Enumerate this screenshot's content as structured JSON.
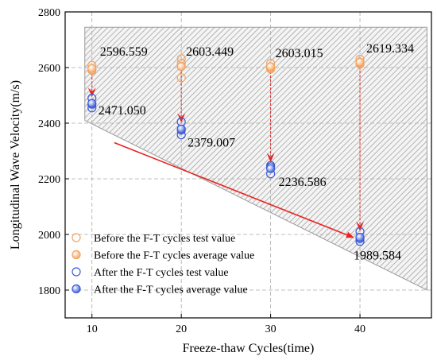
{
  "chart_data": {
    "type": "scatter",
    "xlabel": "Freeze-thaw Cycles(time)",
    "ylabel": "Longitudinal Wave Velocity(m/s)",
    "xlim": [
      7,
      48
    ],
    "ylim": [
      1700,
      2800
    ],
    "x_ticks": [
      "10",
      "20",
      "30",
      "40"
    ],
    "y_ticks": [
      "1800",
      "2000",
      "2200",
      "2400",
      "2600",
      "2800"
    ],
    "grid": true,
    "legend_position": "bottom-left",
    "colors": {
      "before": "#f4a460",
      "after": "#3b5bdb",
      "arrow": "#e8231f",
      "hatch": "#9a9a9a"
    },
    "series": [
      {
        "name": "Before the F-T cycles test value",
        "marker": "open-circle",
        "x": [
          10,
          10,
          10,
          20,
          20,
          20,
          20,
          30,
          30,
          30,
          40,
          40,
          40
        ],
        "y": [
          2608,
          2592,
          2590,
          2632,
          2615,
          2563,
          2604,
          2615,
          2595,
          2599,
          2630,
          2612,
          2616
        ]
      },
      {
        "name": "Before the F-T cycles average value",
        "marker": "filled-circle",
        "x": [
          10,
          20,
          30,
          40
        ],
        "y": [
          2596.559,
          2603.449,
          2603.015,
          2619.334
        ]
      },
      {
        "name": "After the F-T cycles test value",
        "marker": "open-circle",
        "x": [
          10,
          10,
          10,
          20,
          20,
          20,
          30,
          30,
          30,
          40,
          40,
          40
        ],
        "y": [
          2490,
          2455,
          2468,
          2405,
          2358,
          2375,
          2248,
          2218,
          2243,
          2010,
          1975,
          1985
        ]
      },
      {
        "name": "After the F-T cycles average value",
        "marker": "filled-circle",
        "x": [
          10,
          20,
          30,
          40
        ],
        "y": [
          2471.05,
          2379.007,
          2236.586,
          1989.584
        ]
      }
    ],
    "annotations": [
      {
        "text": "2596.559",
        "x": 10,
        "y": 2596.559
      },
      {
        "text": "2603.449",
        "x": 20,
        "y": 2603.449
      },
      {
        "text": "2603.015",
        "x": 30,
        "y": 2603.015
      },
      {
        "text": "2619.334",
        "x": 40,
        "y": 2619.334
      },
      {
        "text": "2471.050",
        "x": 10,
        "y": 2471.05
      },
      {
        "text": "2379.007",
        "x": 20,
        "y": 2379.007
      },
      {
        "text": "2236.586",
        "x": 30,
        "y": 2236.586
      },
      {
        "text": "1989.584",
        "x": 40,
        "y": 1989.584
      }
    ],
    "trend_arrow": {
      "from": [
        12.5,
        2330
      ],
      "to": [
        39.2,
        1990
      ]
    },
    "hatched_region": {
      "top_edge": [
        [
          9.2,
          2745
        ],
        [
          47.5,
          2745
        ]
      ],
      "bottom_edge": [
        [
          9.2,
          2410
        ],
        [
          47.5,
          1800
        ]
      ]
    }
  }
}
